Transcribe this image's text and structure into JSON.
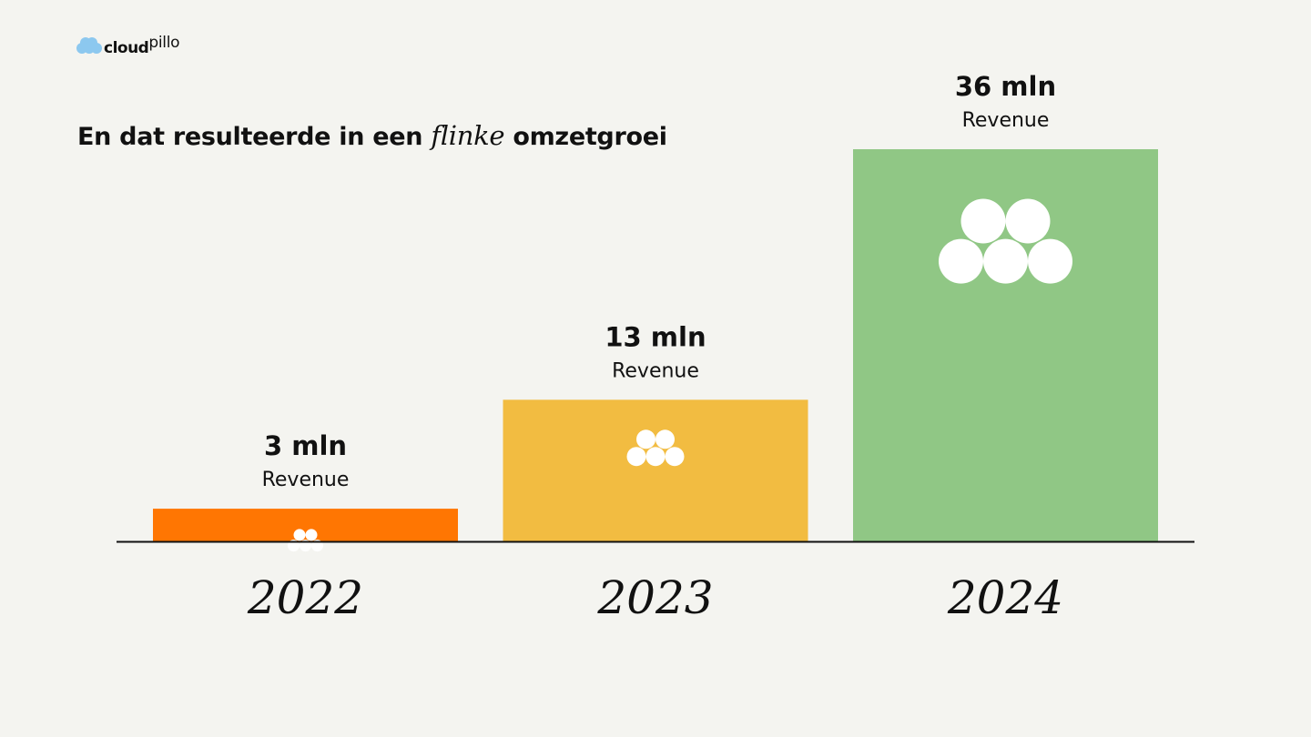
{
  "brand": {
    "logo_text_main": "cloud",
    "logo_text_accent": "pillo",
    "logo_color": "#8cc8ef"
  },
  "headline": {
    "before": "En dat resulteerde in een ",
    "emphasis": "flinke",
    "after": " omzetgroei"
  },
  "chart_data": {
    "type": "bar",
    "categories": [
      "2022",
      "2023",
      "2024"
    ],
    "values": [
      3,
      13,
      36
    ],
    "value_labels": [
      "3 mln",
      "13 mln",
      "36 mln"
    ],
    "sub_label": "Revenue",
    "colors": [
      "#ff7602",
      "#f2bc41",
      "#90c785"
    ],
    "unit": "mln",
    "title": "",
    "xlabel": "",
    "ylabel": "",
    "ylim": [
      0,
      36
    ],
    "grid": false,
    "legend": "none"
  }
}
